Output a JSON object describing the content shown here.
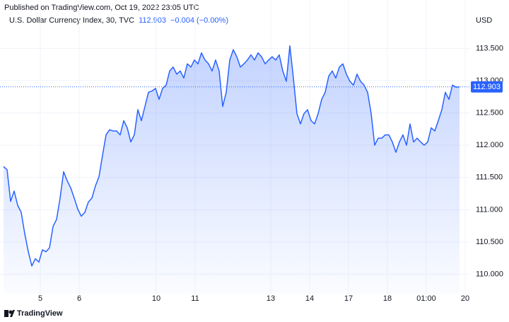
{
  "chart_data": {
    "type": "area",
    "published": "Published on TradingView.com, Oct 19, 2022 23:05 UTC",
    "title": "U.S. Dollar Currency Index, 30, TVC",
    "change": "−0.004 (−0.00%)",
    "y_axis_label": "USD",
    "brand": "TradingView",
    "color": "#2962ff",
    "grid": true,
    "x": [
      0,
      1,
      2,
      3,
      4,
      5,
      6,
      7,
      8,
      9,
      10,
      11,
      12,
      13,
      14,
      15,
      16,
      17,
      18,
      19,
      20,
      21,
      22,
      23,
      24,
      25,
      26,
      27,
      28,
      29,
      30,
      31,
      32,
      33,
      34,
      35,
      36,
      37,
      38,
      39,
      40,
      41,
      42,
      43,
      44,
      45,
      46,
      47,
      48,
      49,
      50,
      51,
      52,
      53,
      54,
      55,
      56,
      57,
      58,
      59,
      60,
      61,
      62,
      63,
      64,
      65,
      66,
      67,
      68,
      69,
      70,
      71,
      72,
      73,
      74,
      75,
      76,
      77,
      78,
      79,
      80,
      81,
      82,
      83,
      84,
      85,
      86,
      87,
      88,
      89,
      90,
      91,
      92,
      93,
      94,
      95,
      96,
      97,
      98,
      99,
      100,
      101,
      102,
      103,
      104,
      105,
      106,
      107,
      108,
      109,
      110,
      111,
      112,
      113,
      114,
      115,
      116,
      117,
      118,
      119,
      120,
      121,
      122,
      123,
      124,
      125,
      126,
      127,
      128,
      129
    ],
    "values": [
      111.67,
      111.62,
      111.13,
      111.29,
      111.07,
      110.96,
      110.63,
      110.35,
      110.13,
      110.24,
      110.19,
      110.38,
      110.35,
      110.41,
      110.74,
      110.85,
      111.18,
      111.59,
      111.45,
      111.34,
      111.18,
      111.01,
      110.9,
      110.96,
      111.12,
      111.18,
      111.37,
      111.51,
      111.84,
      112.16,
      112.24,
      112.22,
      112.22,
      112.16,
      112.38,
      112.27,
      112.05,
      112.16,
      112.55,
      112.38,
      112.6,
      112.82,
      112.84,
      112.88,
      112.71,
      112.88,
      112.93,
      113.15,
      113.21,
      113.1,
      113.15,
      113.04,
      113.26,
      113.21,
      113.32,
      113.26,
      113.43,
      113.32,
      113.26,
      113.15,
      113.32,
      113.15,
      112.6,
      112.82,
      113.32,
      113.48,
      113.37,
      113.21,
      113.26,
      113.32,
      113.4,
      113.32,
      113.43,
      113.37,
      113.26,
      113.32,
      113.37,
      113.32,
      113.4,
      113.15,
      112.99,
      113.54,
      113.04,
      112.49,
      112.33,
      112.49,
      112.55,
      112.38,
      112.33,
      112.49,
      112.71,
      112.82,
      113.07,
      113.15,
      113.04,
      113.21,
      113.26,
      113.1,
      112.99,
      112.93,
      113.1,
      112.99,
      112.93,
      112.82,
      112.49,
      112.0,
      112.11,
      112.11,
      112.16,
      112.16,
      112.05,
      111.89,
      112.05,
      112.16,
      112.0,
      112.33,
      112.05,
      112.11,
      112.05,
      112.0,
      112.05,
      112.27,
      112.22,
      112.38,
      112.55,
      112.82,
      112.71,
      112.93,
      112.9,
      112.903
    ],
    "xlim": [
      0,
      131
    ],
    "xticks": [
      {
        "value": 10.4,
        "label": "5"
      },
      {
        "value": 21.4,
        "label": "6"
      },
      {
        "value": 43.2,
        "label": "10"
      },
      {
        "value": 54.2,
        "label": "11"
      },
      {
        "value": 75.6,
        "label": "13"
      },
      {
        "value": 86.6,
        "label": "14"
      },
      {
        "value": 97.6,
        "label": "17"
      },
      {
        "value": 108.6,
        "label": "18"
      },
      {
        "value": 119.6,
        "label": "01:00"
      },
      {
        "value": 130.6,
        "label": "20"
      }
    ],
    "ylim": [
      109.7,
      114.03
    ],
    "yticks": [
      {
        "value": 110,
        "label": "110.000"
      },
      {
        "value": 110.5,
        "label": "110.500"
      },
      {
        "value": 111,
        "label": "111.000"
      },
      {
        "value": 111.5,
        "label": "111.500"
      },
      {
        "value": 112,
        "label": "112.000"
      },
      {
        "value": 112.5,
        "label": "112.500"
      },
      {
        "value": 113,
        "label": "113.000"
      },
      {
        "value": 113.5,
        "label": "113.500"
      }
    ]
  }
}
